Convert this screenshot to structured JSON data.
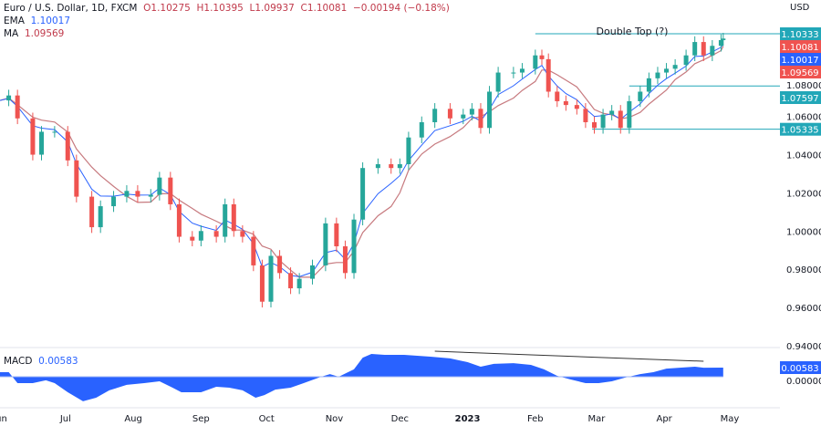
{
  "header": {
    "symbol": "Euro / U.S. Dollar, 1D, FXCM",
    "open": "O1.10275",
    "high": "H1.10395",
    "low": "L1.09937",
    "close": "C1.10081",
    "change": "−0.00194 (−0.18%)"
  },
  "indicators": {
    "ema_label": "EMA",
    "ema_value": "1.10017",
    "ma_label": "MA",
    "ma_value": "1.09569",
    "macd_label": "MACD",
    "macd_value": "0.00583"
  },
  "colors": {
    "up": "#26a69a",
    "down": "#ef5350",
    "ema": "#2962ff",
    "ma": "#c77a7f",
    "macd": "#2962ff",
    "level": "#22a7b8"
  },
  "chart_data": {
    "type": "candlestick",
    "currency_label": "USD",
    "annotation": "Double Top (?)",
    "ylim": [
      0.94,
      1.10333
    ],
    "y_ticks": [
      "1.08000",
      "1.06000",
      "1.04000",
      "1.02000",
      "1.00000",
      "0.98000",
      "0.96000",
      "0.94000"
    ],
    "x_ticks": [
      {
        "label": "Jun",
        "date": "2022-06-01"
      },
      {
        "label": "Jul",
        "date": "2022-07-01"
      },
      {
        "label": "Aug",
        "date": "2022-08-01"
      },
      {
        "label": "Sep",
        "date": "2022-09-01"
      },
      {
        "label": "Oct",
        "date": "2022-10-01"
      },
      {
        "label": "Nov",
        "date": "2022-11-01"
      },
      {
        "label": "Dec",
        "date": "2022-12-01"
      },
      {
        "label": "2023",
        "date": "2023-01-01",
        "bold": true
      },
      {
        "label": "Feb",
        "date": "2023-02-01"
      },
      {
        "label": "Mar",
        "date": "2023-03-01"
      },
      {
        "label": "Apr",
        "date": "2023-04-01"
      },
      {
        "label": "May",
        "date": "2023-05-01"
      }
    ],
    "price_labels": [
      {
        "value": "1.10333",
        "color": "#22a7b8"
      },
      {
        "value": "1.10081",
        "color": "#ef5350"
      },
      {
        "value": "1.10017",
        "color": "#2962ff"
      },
      {
        "value": "1.09569",
        "color": "#ef5350"
      },
      {
        "value": "1.07597",
        "color": "#22a7b8"
      },
      {
        "value": "1.05335",
        "color": "#22a7b8"
      }
    ],
    "levels": [
      {
        "price": 1.10333,
        "from": "2023-02-01"
      },
      {
        "price": 1.07597,
        "from": "2023-03-16"
      },
      {
        "price": 1.05335,
        "from": "2023-02-27"
      }
    ],
    "closes": [
      [
        "2022-06-01",
        1.0684
      ],
      [
        "2022-06-05",
        1.071
      ],
      [
        "2022-06-09",
        1.059
      ],
      [
        "2022-06-16",
        1.04
      ],
      [
        "2022-06-20",
        1.052
      ],
      [
        "2022-06-26",
        1.052
      ],
      [
        "2022-07-02",
        1.037
      ],
      [
        "2022-07-06",
        1.018
      ],
      [
        "2022-07-13",
        1.002
      ],
      [
        "2022-07-17",
        1.013
      ],
      [
        "2022-07-23",
        1.018
      ],
      [
        "2022-07-29",
        1.021
      ],
      [
        "2022-08-03",
        1.018
      ],
      [
        "2022-08-09",
        1.019
      ],
      [
        "2022-08-13",
        1.028
      ],
      [
        "2022-08-18",
        1.014
      ],
      [
        "2022-08-22",
        0.997
      ],
      [
        "2022-08-28",
        0.995
      ],
      [
        "2022-09-01",
        1.0
      ],
      [
        "2022-09-08",
        0.997
      ],
      [
        "2022-09-12",
        1.014
      ],
      [
        "2022-09-16",
        1.0
      ],
      [
        "2022-09-20",
        0.997
      ],
      [
        "2022-09-25",
        0.982
      ],
      [
        "2022-09-29",
        0.963
      ],
      [
        "2022-10-03",
        0.987
      ],
      [
        "2022-10-07",
        0.978
      ],
      [
        "2022-10-12",
        0.97
      ],
      [
        "2022-10-16",
        0.975
      ],
      [
        "2022-10-22",
        0.982
      ],
      [
        "2022-10-28",
        1.004
      ],
      [
        "2022-11-02",
        0.992
      ],
      [
        "2022-11-06",
        0.978
      ],
      [
        "2022-11-10",
        1.006
      ],
      [
        "2022-11-14",
        1.033
      ],
      [
        "2022-11-21",
        1.035
      ],
      [
        "2022-11-27",
        1.033
      ],
      [
        "2022-12-01",
        1.035
      ],
      [
        "2022-12-05",
        1.049
      ],
      [
        "2022-12-11",
        1.057
      ],
      [
        "2022-12-17",
        1.064
      ],
      [
        "2022-12-24",
        1.059
      ],
      [
        "2022-12-30",
        1.061
      ],
      [
        "2023-01-03",
        1.064
      ],
      [
        "2023-01-07",
        1.054
      ],
      [
        "2023-01-11",
        1.073
      ],
      [
        "2023-01-15",
        1.083
      ],
      [
        "2023-01-22",
        1.083
      ],
      [
        "2023-01-26",
        1.085
      ],
      [
        "2023-02-01",
        1.092
      ],
      [
        "2023-02-04",
        1.09
      ],
      [
        "2023-02-07",
        1.073
      ],
      [
        "2023-02-11",
        1.068
      ],
      [
        "2023-02-15",
        1.066
      ],
      [
        "2023-02-20",
        1.064
      ],
      [
        "2023-02-24",
        1.057
      ],
      [
        "2023-02-28",
        1.054
      ],
      [
        "2023-03-04",
        1.061
      ],
      [
        "2023-03-08",
        1.063
      ],
      [
        "2023-03-12",
        1.054
      ],
      [
        "2023-03-16",
        1.068
      ],
      [
        "2023-03-21",
        1.073
      ],
      [
        "2023-03-25",
        1.08
      ],
      [
        "2023-03-29",
        1.083
      ],
      [
        "2023-04-02",
        1.085
      ],
      [
        "2023-04-06",
        1.087
      ],
      [
        "2023-04-11",
        1.092
      ],
      [
        "2023-04-15",
        1.099
      ],
      [
        "2023-04-19",
        1.092
      ],
      [
        "2023-04-23",
        1.097
      ],
      [
        "2023-04-27",
        1.1
      ],
      [
        "2023-04-28",
        1.10081
      ]
    ],
    "macd": [
      [
        "2022-06-01",
        0.0029
      ],
      [
        "2022-06-05",
        0.0029
      ],
      [
        "2022-06-09",
        -0.0041
      ],
      [
        "2022-06-16",
        -0.0041
      ],
      [
        "2022-06-22",
        -0.0023
      ],
      [
        "2022-06-26",
        -0.0041
      ],
      [
        "2022-07-02",
        -0.0099
      ],
      [
        "2022-07-09",
        -0.0157
      ],
      [
        "2022-07-15",
        -0.0134
      ],
      [
        "2022-07-21",
        -0.0087
      ],
      [
        "2022-07-29",
        -0.0052
      ],
      [
        "2022-08-06",
        -0.0041
      ],
      [
        "2022-08-13",
        -0.0029
      ],
      [
        "2022-08-19",
        -0.007
      ],
      [
        "2022-08-23",
        -0.0099
      ],
      [
        "2022-09-01",
        -0.0099
      ],
      [
        "2022-09-08",
        -0.0064
      ],
      [
        "2022-09-14",
        -0.007
      ],
      [
        "2022-09-20",
        -0.0087
      ],
      [
        "2022-09-26",
        -0.0134
      ],
      [
        "2022-09-30",
        -0.0117
      ],
      [
        "2022-10-05",
        -0.0082
      ],
      [
        "2022-10-12",
        -0.007
      ],
      [
        "2022-10-18",
        -0.0041
      ],
      [
        "2022-10-26",
        0
      ],
      [
        "2022-10-30",
        0.0017
      ],
      [
        "2022-11-03",
        0
      ],
      [
        "2022-11-10",
        0.0047
      ],
      [
        "2022-11-14",
        0.0122
      ],
      [
        "2022-11-18",
        0.0146
      ],
      [
        "2022-11-24",
        0.014
      ],
      [
        "2022-12-03",
        0.014
      ],
      [
        "2022-12-09",
        0.0134
      ],
      [
        "2022-12-15",
        0.0128
      ],
      [
        "2022-12-24",
        0.0117
      ],
      [
        "2023-01-01",
        0.0093
      ],
      [
        "2023-01-07",
        0.0064
      ],
      [
        "2023-01-13",
        0.0082
      ],
      [
        "2023-01-22",
        0.0087
      ],
      [
        "2023-01-30",
        0.0076
      ],
      [
        "2023-02-05",
        0.0047
      ],
      [
        "2023-02-11",
        0.0006
      ],
      [
        "2023-02-17",
        -0.0017
      ],
      [
        "2023-02-24",
        -0.0041
      ],
      [
        "2023-03-02",
        -0.0041
      ],
      [
        "2023-03-08",
        -0.0029
      ],
      [
        "2023-03-14",
        -0.0006
      ],
      [
        "2023-03-21",
        0.0017
      ],
      [
        "2023-03-27",
        0.0029
      ],
      [
        "2023-04-02",
        0.0052
      ],
      [
        "2023-04-08",
        0.0058
      ],
      [
        "2023-04-15",
        0.0064
      ],
      [
        "2023-04-19",
        0.0058
      ],
      [
        "2023-04-28",
        0.00583
      ]
    ],
    "macd_zero_label": "0.00000",
    "macd_trendline": [
      [
        "2022-12-17",
        0.0163
      ],
      [
        "2023-04-19",
        0.0099
      ]
    ]
  }
}
